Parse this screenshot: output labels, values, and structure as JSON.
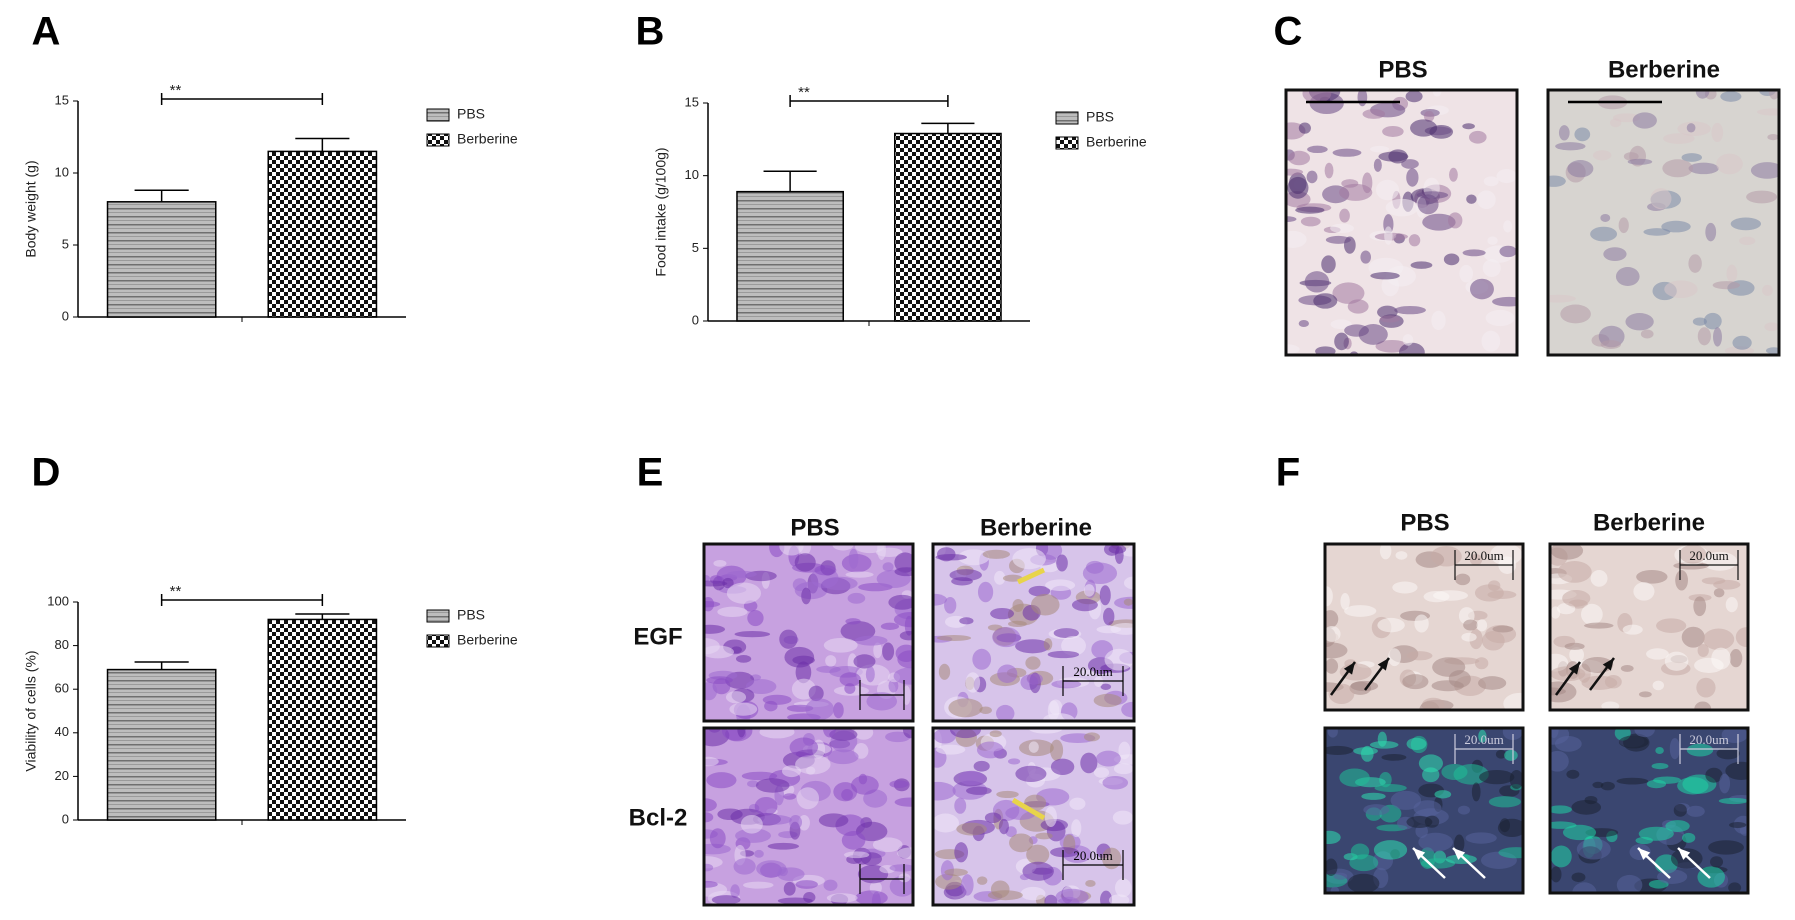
{
  "chart_data": [
    {
      "panel": "A",
      "type": "bar",
      "ylabel": "Body weight (g)",
      "categories": [
        null
      ],
      "series": [
        {
          "name": "PBS",
          "color": "#6f6f6f",
          "pattern": "stripes",
          "values": [
            8.0
          ],
          "errors": [
            0.8
          ]
        },
        {
          "name": "Berberine",
          "color": "#111111",
          "pattern": "checker",
          "values": [
            11.5
          ],
          "errors": [
            0.9
          ]
        }
      ],
      "annotation": "**",
      "ylim": [
        0,
        15
      ],
      "yticks": [
        0,
        5,
        10,
        15
      ],
      "legend": "right"
    },
    {
      "panel": "B",
      "type": "bar",
      "ylabel": "Food intake (g/100g)",
      "categories": [
        null
      ],
      "series": [
        {
          "name": "PBS",
          "color": "#6f6f6f",
          "pattern": "stripes",
          "values": [
            8.9
          ],
          "errors": [
            1.4
          ]
        },
        {
          "name": "Berberine",
          "color": "#111111",
          "pattern": "checker",
          "values": [
            12.9
          ],
          "errors": [
            0.7
          ]
        }
      ],
      "annotation": "**",
      "ylim": [
        0,
        15
      ],
      "yticks": [
        0,
        5,
        10,
        15
      ],
      "legend": "right"
    },
    {
      "panel": "D",
      "type": "bar",
      "ylabel": "Viability of cells (%)",
      "categories": [
        null
      ],
      "series": [
        {
          "name": "PBS",
          "color": "#6f6f6f",
          "pattern": "stripes",
          "values": [
            69
          ],
          "errors": [
            3.5
          ]
        },
        {
          "name": "Berberine",
          "color": "#111111",
          "pattern": "checker",
          "values": [
            92
          ],
          "errors": [
            2.5
          ]
        }
      ],
      "annotation": "**",
      "ylim": [
        0,
        100
      ],
      "yticks": [
        0,
        20,
        40,
        60,
        80,
        100
      ],
      "legend": "right"
    }
  ],
  "image_panels": [
    {
      "panel": "C",
      "columns": [
        "PBS",
        "Berberine"
      ]
    },
    {
      "panel": "E",
      "columns": [
        "PBS",
        "Berberine"
      ],
      "rows": [
        "EGF",
        "Bcl-2"
      ],
      "scale_labels": [
        "20.0um",
        "20.0um"
      ]
    },
    {
      "panel": "F",
      "columns": [
        "PBS",
        "Berberine"
      ],
      "scale_labels": [
        "20.0um",
        "20.0um",
        "20.0um",
        "20.0um"
      ]
    }
  ]
}
